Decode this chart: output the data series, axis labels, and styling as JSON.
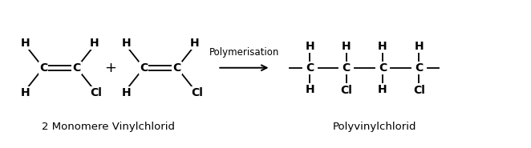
{
  "bg_color": "#ffffff",
  "text_color": "#000000",
  "figsize": [
    6.62,
    1.85
  ],
  "dpi": 100,
  "label_bottom": "2 Monomere Vinylchlorid",
  "label_bottom2": "Polyvinylchlorid",
  "arrow_label": "Polymerisation",
  "font_size_atoms": 10,
  "font_size_label": 9.5,
  "font_size_arrow": 8.5,
  "lw": 1.3,
  "xlim": [
    0,
    10
  ],
  "ylim": [
    0,
    2.8
  ]
}
